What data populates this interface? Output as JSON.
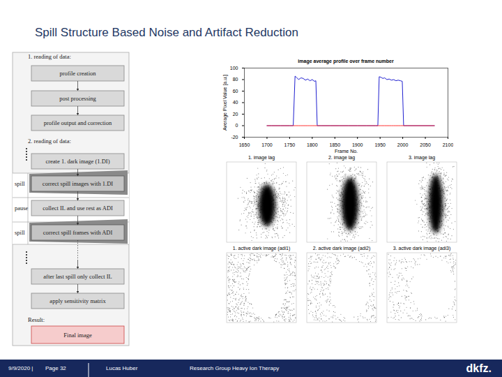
{
  "header": {
    "title": "Spill Structure Based Noise and Artifact Reduction"
  },
  "flowchart": {
    "section1": {
      "heading": "1. reading of data:",
      "steps": [
        "profile creation",
        "post processing",
        "profile output and correction"
      ]
    },
    "section2": {
      "heading": "2. reading of data:",
      "first_step": "create 1. dark image (1.DI)",
      "cycle": [
        {
          "phase": "spill",
          "step": "correct spill images with 1.DI"
        },
        {
          "phase": "pause",
          "step": "collect IL and use rest as ADI"
        },
        {
          "phase": "spill",
          "step": "correct spill frames with ADI"
        }
      ],
      "final_steps": [
        "after last spill only collect IL",
        "apply sensitivity matrix"
      ]
    },
    "result": {
      "heading": "Result:",
      "box": "Final image"
    }
  },
  "chart_data": {
    "type": "line",
    "title": "image average profile over frame number",
    "x_label": "Frame No.",
    "y_label": "Average Pixel Value [a.u.]",
    "x": [
      1700,
      1710,
      1720,
      1730,
      1740,
      1750,
      1758,
      1762,
      1765,
      1770,
      1775,
      1780,
      1785,
      1790,
      1795,
      1800,
      1805,
      1808,
      1811,
      1820,
      1840,
      1860,
      1880,
      1900,
      1920,
      1940,
      1945,
      1948,
      1952,
      1956,
      1960,
      1965,
      1970,
      1975,
      1980,
      1985,
      1990,
      1995,
      1999,
      2002,
      2010,
      2030,
      2050,
      2070
    ],
    "series": [
      {
        "color": "#1f1fd0",
        "values": [
          0,
          0,
          0,
          0,
          0,
          0,
          0,
          86,
          84,
          80,
          83,
          82,
          79,
          81,
          78,
          80,
          77,
          78,
          0,
          0,
          0,
          0,
          0,
          0,
          0,
          0,
          0,
          85,
          84,
          82,
          83,
          80,
          81,
          79,
          80,
          78,
          79,
          78,
          77,
          0,
          0,
          0,
          0,
          0
        ]
      },
      {
        "color": "#ff3030",
        "values": [
          0,
          0,
          0,
          0,
          0,
          0,
          0,
          0,
          0,
          0,
          0,
          0,
          0,
          0,
          0,
          0,
          0,
          0,
          0,
          0,
          0,
          0,
          0,
          0,
          0,
          0,
          0,
          0,
          0,
          0,
          0,
          0,
          0,
          0,
          0,
          0,
          0,
          0,
          0,
          0,
          0,
          0,
          0,
          0
        ]
      }
    ],
    "xlim": [
      1650,
      2100
    ],
    "xticks": [
      1650,
      1700,
      1750,
      1800,
      1850,
      1900,
      1950,
      2000,
      2050,
      2100
    ],
    "ylim": [
      -20,
      100
    ],
    "yticks": [
      -20,
      0,
      20,
      40,
      60,
      80,
      100
    ],
    "grid": false
  },
  "panels": {
    "image_lag": [
      "1. image lag",
      "2. image lag",
      "3. image lag"
    ],
    "active_dark_image": [
      "1. active dark image (adi1)",
      "2. active dark image (adi2)",
      "3. active dark image (adi3)"
    ]
  },
  "footer": {
    "date": "9/9/2020 |",
    "page": "Page 32",
    "author": "Lucas Huber",
    "group": "Research Group Heavy Ion Therapy",
    "logo": "dkfz."
  }
}
